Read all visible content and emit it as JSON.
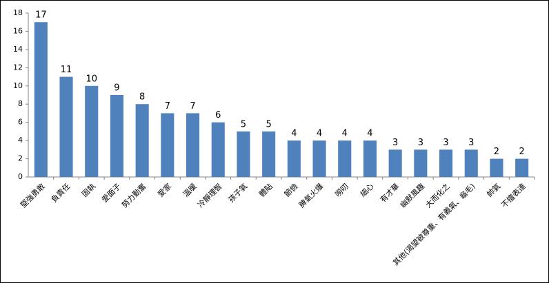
{
  "chart_data": {
    "type": "bar",
    "categories": [
      "堅強勇敢",
      "負責任",
      "固執",
      "愛面子",
      "努力勤奮",
      "愛家",
      "溫暖",
      "冷靜理智",
      "孩子氣",
      "體貼",
      "節儉",
      "脾氣火爆",
      "嘮叨",
      "細心",
      "有才華",
      "幽默風趣",
      "大而化之",
      "其他(渴望被尊重、有義氣、龜毛)",
      "帥氣",
      "不擅表達"
    ],
    "values": [
      17,
      11,
      10,
      9,
      8,
      7,
      7,
      6,
      5,
      5,
      4,
      4,
      4,
      4,
      3,
      3,
      3,
      3,
      2,
      2
    ],
    "color": "#4f81bd",
    "ylim": [
      0,
      18
    ],
    "yticks": [
      0,
      2,
      4,
      6,
      8,
      10,
      12,
      14,
      16,
      18
    ],
    "grid": false
  }
}
